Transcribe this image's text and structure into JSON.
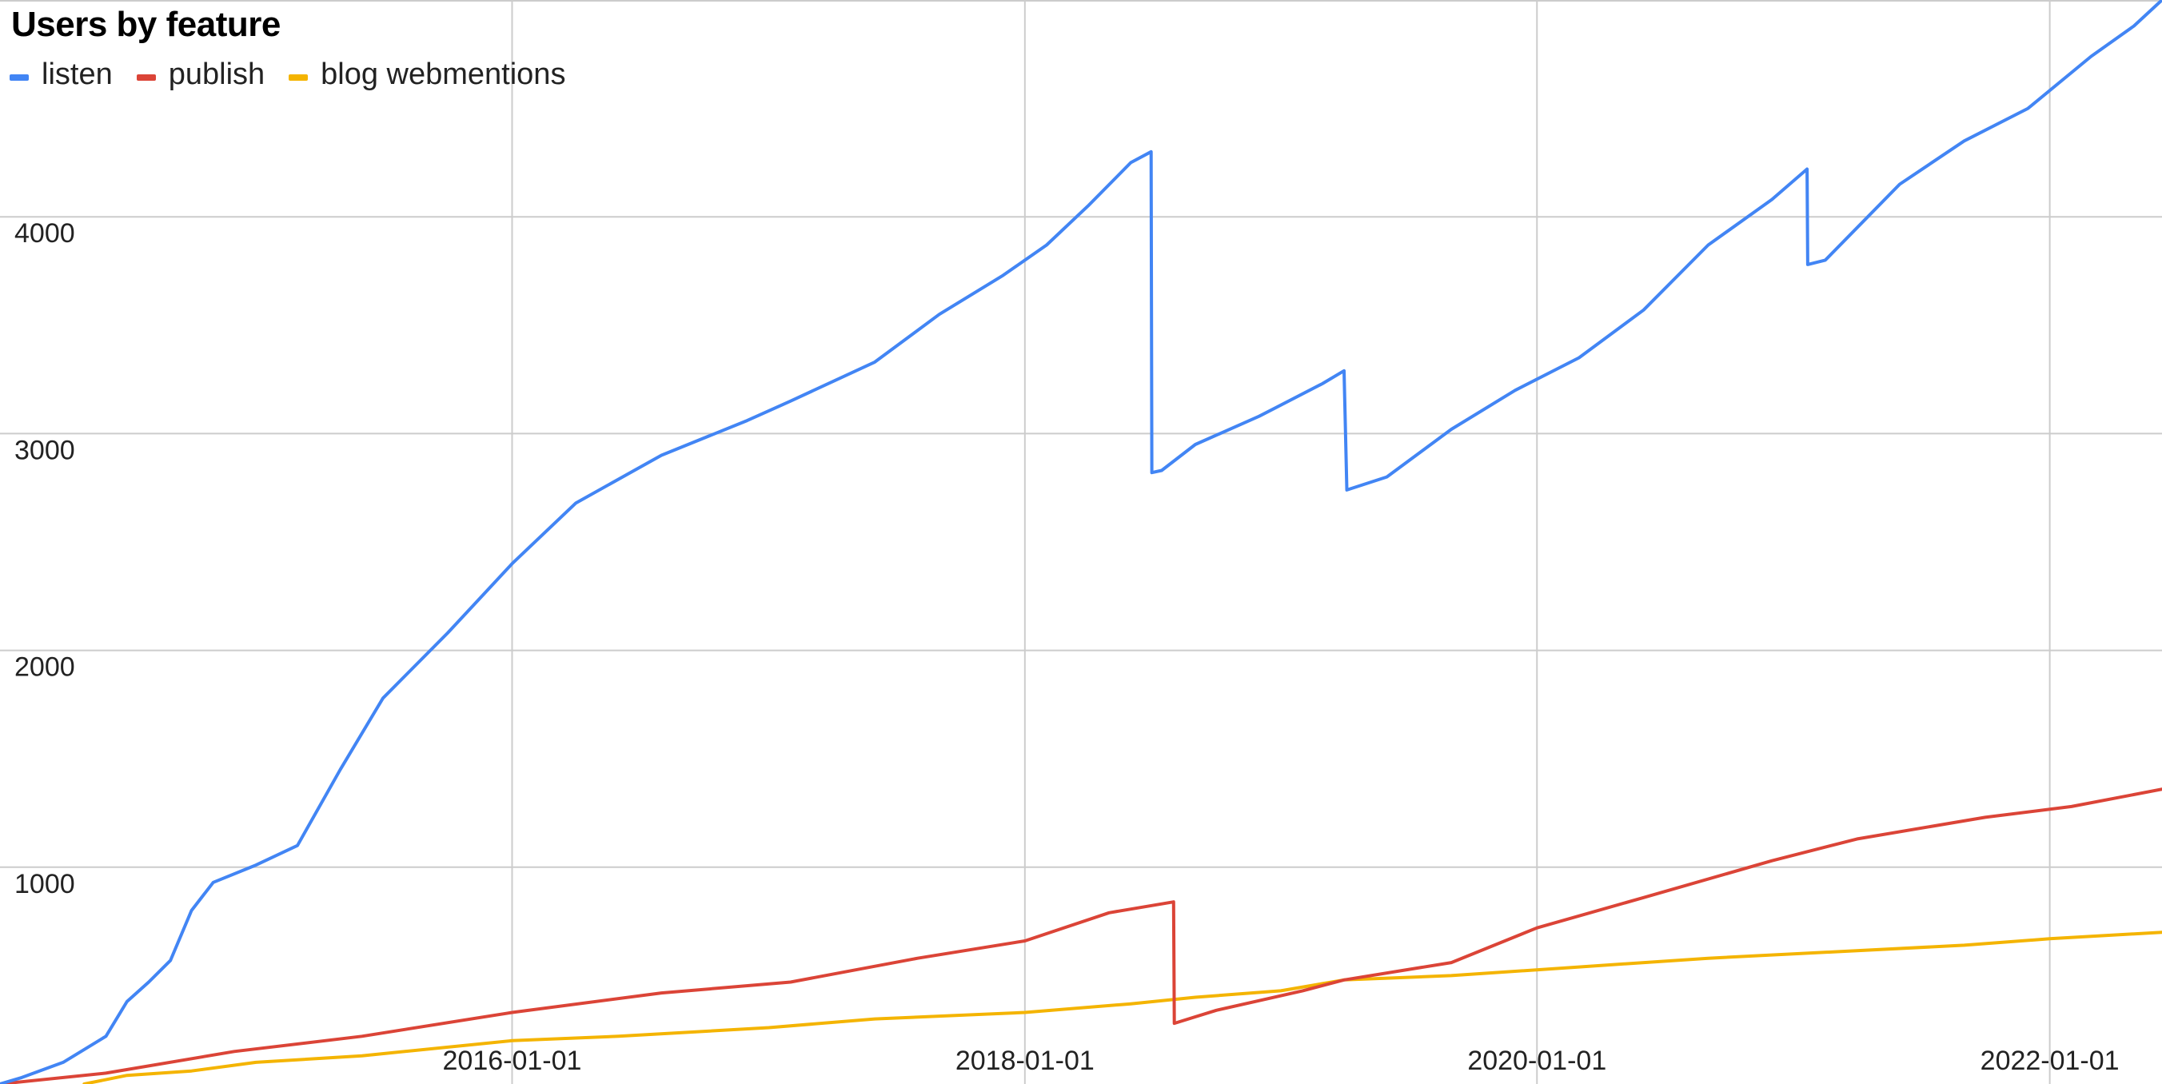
{
  "chart_data": {
    "type": "line",
    "title": "Users by feature",
    "xlabel": "",
    "ylabel": "",
    "x_range": [
      "2014-01-01",
      "2022-06-10"
    ],
    "ylim": [
      0,
      5000
    ],
    "grid": true,
    "legend_position": "top-left",
    "x_ticks": [
      "2016-01-01",
      "2018-01-01",
      "2020-01-01",
      "2022-01-01"
    ],
    "y_ticks": [
      1000,
      2000,
      3000,
      4000
    ],
    "series": [
      {
        "name": "listen",
        "color": "#4285f4",
        "points": [
          [
            "2014-01-01",
            0
          ],
          [
            "2014-02-01",
            30
          ],
          [
            "2014-04-01",
            100
          ],
          [
            "2014-06-01",
            220
          ],
          [
            "2014-07-01",
            380
          ],
          [
            "2014-08-01",
            470
          ],
          [
            "2014-09-01",
            570
          ],
          [
            "2014-10-01",
            800
          ],
          [
            "2014-11-01",
            930
          ],
          [
            "2015-01-01",
            1010
          ],
          [
            "2015-03-01",
            1100
          ],
          [
            "2015-05-01",
            1450
          ],
          [
            "2015-07-01",
            1780
          ],
          [
            "2015-10-01",
            2080
          ],
          [
            "2016-01-01",
            2400
          ],
          [
            "2016-04-01",
            2680
          ],
          [
            "2016-08-01",
            2900
          ],
          [
            "2016-12-01",
            3060
          ],
          [
            "2017-02-01",
            3150
          ],
          [
            "2017-06-01",
            3330
          ],
          [
            "2017-09-01",
            3550
          ],
          [
            "2017-12-01",
            3730
          ],
          [
            "2018-02-01",
            3870
          ],
          [
            "2018-04-01",
            4050
          ],
          [
            "2018-06-01",
            4250
          ],
          [
            "2018-06-30",
            4300
          ],
          [
            "2018-07-01",
            2820
          ],
          [
            "2018-07-15",
            2830
          ],
          [
            "2018-09-01",
            2950
          ],
          [
            "2018-12-01",
            3080
          ],
          [
            "2019-03-01",
            3230
          ],
          [
            "2019-04-01",
            3290
          ],
          [
            "2019-04-05",
            2740
          ],
          [
            "2019-06-01",
            2800
          ],
          [
            "2019-09-01",
            3020
          ],
          [
            "2019-12-01",
            3200
          ],
          [
            "2020-03-01",
            3350
          ],
          [
            "2020-06-01",
            3570
          ],
          [
            "2020-09-01",
            3870
          ],
          [
            "2020-12-01",
            4080
          ],
          [
            "2021-01-20",
            4220
          ],
          [
            "2021-01-21",
            3780
          ],
          [
            "2021-02-15",
            3800
          ],
          [
            "2021-06-01",
            4150
          ],
          [
            "2021-09-01",
            4350
          ],
          [
            "2021-12-01",
            4500
          ],
          [
            "2022-03-01",
            4740
          ],
          [
            "2022-05-01",
            4880
          ],
          [
            "2022-06-10",
            5000
          ]
        ]
      },
      {
        "name": "publish",
        "color": "#db4437",
        "points": [
          [
            "2014-01-01",
            0
          ],
          [
            "2014-06-01",
            50
          ],
          [
            "2014-12-01",
            150
          ],
          [
            "2015-06-01",
            220
          ],
          [
            "2016-01-01",
            330
          ],
          [
            "2016-08-01",
            420
          ],
          [
            "2017-02-01",
            470
          ],
          [
            "2017-08-01",
            580
          ],
          [
            "2018-01-01",
            660
          ],
          [
            "2018-05-01",
            790
          ],
          [
            "2018-08-01",
            840
          ],
          [
            "2018-08-02",
            280
          ],
          [
            "2018-10-01",
            340
          ],
          [
            "2019-02-01",
            430
          ],
          [
            "2019-04-01",
            480
          ],
          [
            "2019-09-01",
            560
          ],
          [
            "2020-01-01",
            720
          ],
          [
            "2020-06-01",
            860
          ],
          [
            "2020-12-01",
            1030
          ],
          [
            "2021-04-01",
            1130
          ],
          [
            "2021-10-01",
            1230
          ],
          [
            "2022-02-01",
            1280
          ],
          [
            "2022-06-10",
            1360
          ]
        ]
      },
      {
        "name": "blog webmentions",
        "color": "#f4b400",
        "points": [
          [
            "2014-05-01",
            0
          ],
          [
            "2014-07-01",
            40
          ],
          [
            "2014-10-01",
            60
          ],
          [
            "2015-01-01",
            100
          ],
          [
            "2015-06-01",
            130
          ],
          [
            "2016-01-01",
            200
          ],
          [
            "2016-06-01",
            220
          ],
          [
            "2017-01-01",
            260
          ],
          [
            "2017-06-01",
            300
          ],
          [
            "2018-01-01",
            330
          ],
          [
            "2018-06-01",
            370
          ],
          [
            "2018-09-01",
            400
          ],
          [
            "2019-01-01",
            430
          ],
          [
            "2019-04-01",
            480
          ],
          [
            "2019-09-01",
            500
          ],
          [
            "2020-03-01",
            540
          ],
          [
            "2020-09-01",
            580
          ],
          [
            "2021-03-01",
            610
          ],
          [
            "2021-09-01",
            640
          ],
          [
            "2022-01-01",
            670
          ],
          [
            "2022-06-10",
            700
          ]
        ]
      }
    ]
  }
}
